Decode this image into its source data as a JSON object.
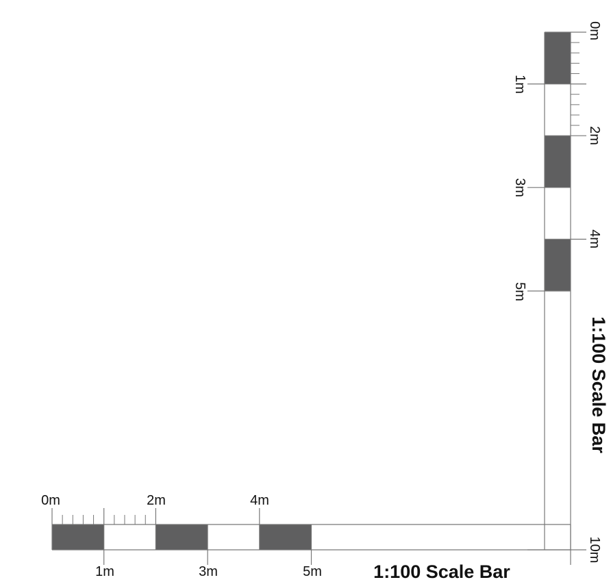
{
  "horizontal_bar": {
    "title": "1:100 Scale Bar",
    "top_labels": [
      "0m",
      "2m",
      "4m"
    ],
    "bottom_labels": [
      "1m",
      "3m",
      "5m",
      "10m"
    ],
    "segments_m": [
      0,
      1,
      2,
      3,
      4,
      5,
      10
    ],
    "filled_segments": [
      0,
      2,
      4
    ],
    "minor_ticks_per_meter": 5
  },
  "vertical_bar": {
    "title": "1:100 Scale Bar",
    "right_labels": [
      "0m",
      "2m",
      "4m"
    ],
    "left_labels": [
      "1m",
      "3m",
      "5m"
    ],
    "segments_m": [
      0,
      1,
      2,
      3,
      4,
      5,
      10
    ],
    "filled_segments": [
      0,
      2,
      4
    ],
    "minor_ticks_per_meter": 5
  },
  "colors": {
    "fill": "#5f5f60",
    "stroke": "#777777",
    "text": "#111111",
    "background": "#ffffff"
  }
}
